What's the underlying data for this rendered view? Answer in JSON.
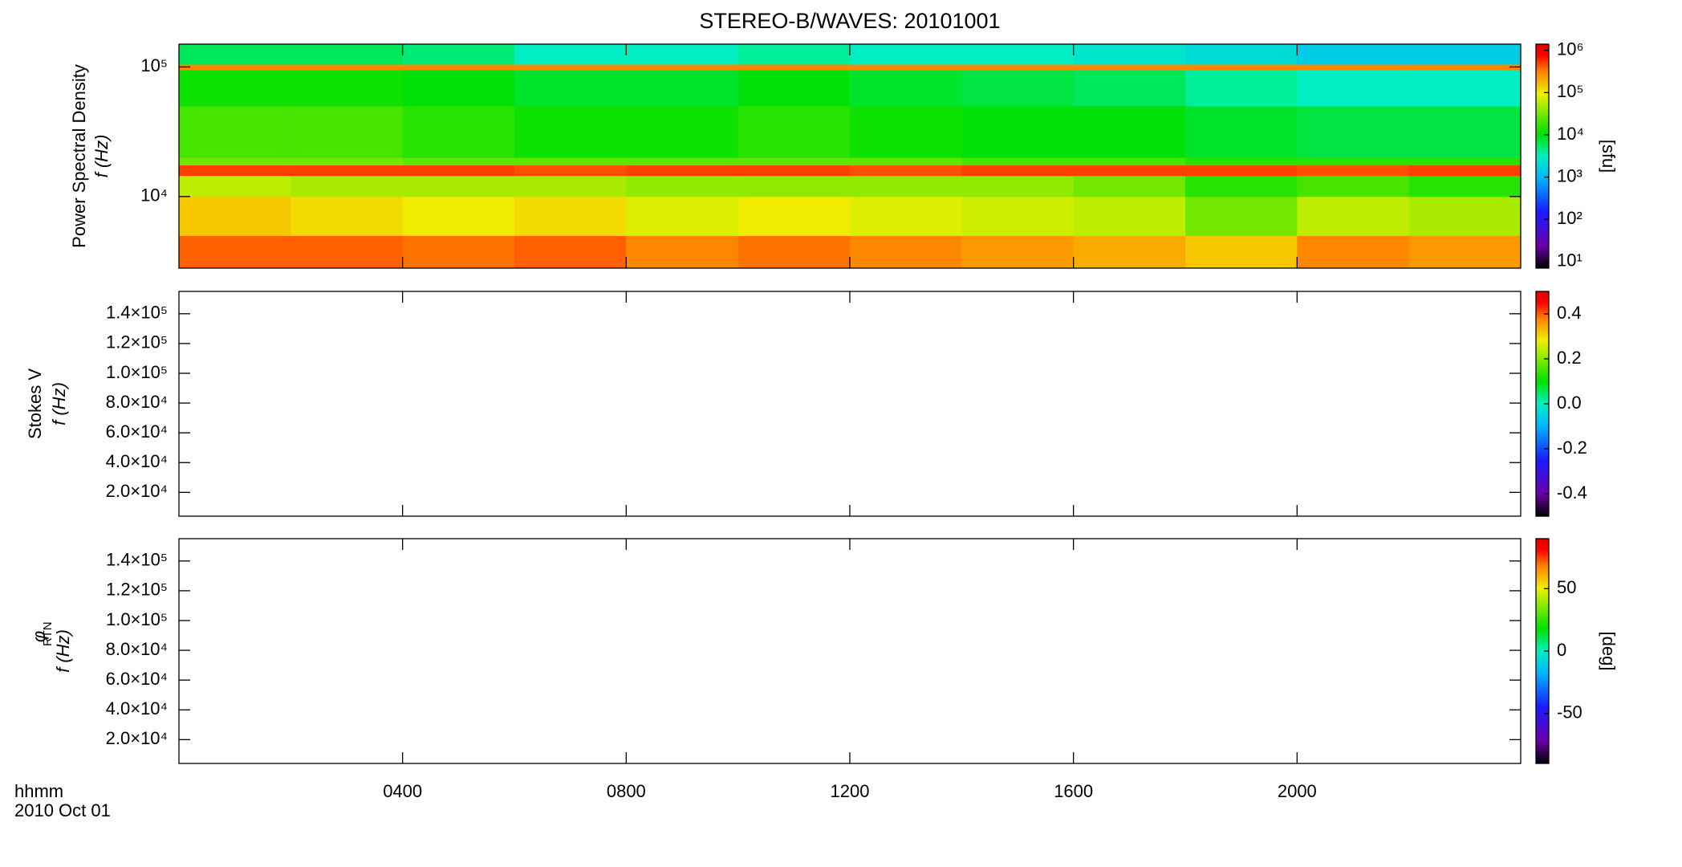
{
  "chart_data": [
    {
      "type": "heatmap",
      "title": "STEREO-B/WAVES: 20101001",
      "ylabel": "Power Spectral Density",
      "ylabel2": "f (Hz)",
      "xlim": [
        0,
        24
      ],
      "xticks": [
        4,
        8,
        12,
        16,
        20
      ],
      "ylog": true,
      "ylim": [
        2800,
        150000
      ],
      "yticks": [
        {
          "value": 10000,
          "label": "10⁴"
        },
        {
          "value": 100000,
          "label": "10⁵"
        }
      ],
      "x_edges": [
        0,
        2,
        4,
        6,
        8,
        10,
        12,
        14,
        16,
        18,
        20,
        22,
        24
      ],
      "y_edges": [
        2800,
        5000,
        10000,
        14500,
        17500,
        20000,
        50000,
        95000,
        105000,
        150000
      ],
      "z": [
        [
          400000,
          400000,
          350000,
          400000,
          300000,
          350000,
          300000,
          250000,
          200000,
          150000,
          300000,
          250000
        ],
        [
          150000,
          120000,
          100000,
          120000,
          80000,
          100000,
          80000,
          70000,
          60000,
          30000,
          60000,
          50000
        ],
        [
          60000,
          50000,
          50000,
          50000,
          40000,
          40000,
          40000,
          40000,
          30000,
          15000,
          20000,
          15000
        ],
        [
          500000,
          500000,
          500000,
          450000,
          500000,
          500000,
          450000,
          500000,
          500000,
          500000,
          450000,
          500000
        ],
        [
          30000,
          30000,
          25000,
          25000,
          25000,
          25000,
          25000,
          20000,
          20000,
          15000,
          15000,
          15000
        ],
        [
          20000,
          20000,
          15000,
          12000,
          12000,
          15000,
          12000,
          10000,
          10000,
          8000,
          7000,
          7000
        ],
        [
          12000,
          12000,
          10000,
          8000,
          8000,
          10000,
          8000,
          7000,
          6000,
          4000,
          3000,
          3000
        ],
        [
          300000,
          300000,
          300000,
          300000,
          300000,
          300000,
          300000,
          300000,
          300000,
          300000,
          300000,
          300000
        ],
        [
          6000,
          6000,
          5000,
          3000,
          3000,
          4000,
          3000,
          3000,
          2500,
          2000,
          1500,
          1500
        ]
      ],
      "colormap": "rainbow",
      "clog": true,
      "clim": [
        7,
        1400000
      ],
      "cticks": [
        {
          "value": 10,
          "label": "10¹"
        },
        {
          "value": 100,
          "label": "10²"
        },
        {
          "value": 1000,
          "label": "10³"
        },
        {
          "value": 10000,
          "label": "10⁴"
        },
        {
          "value": 100000,
          "label": "10⁵"
        },
        {
          "value": 1000000,
          "label": "10⁶"
        }
      ],
      "clabel": "[sfu]"
    },
    {
      "type": "heatmap",
      "ylabel": "Stokes V",
      "ylabel2": "f (Hz)",
      "xlim": [
        0,
        24
      ],
      "xticks": [
        4,
        8,
        12,
        16,
        20
      ],
      "ylim": [
        4000,
        155000
      ],
      "yticks": [
        {
          "value": 20000,
          "label": "2.0×10⁴"
        },
        {
          "value": 40000,
          "label": "4.0×10⁴"
        },
        {
          "value": 60000,
          "label": "6.0×10⁴"
        },
        {
          "value": 80000,
          "label": "8.0×10⁴"
        },
        {
          "value": 100000,
          "label": "1.0×10⁵"
        },
        {
          "value": 120000,
          "label": "1.2×10⁵"
        },
        {
          "value": 140000,
          "label": "1.4×10⁵"
        }
      ],
      "colormap": "rainbow",
      "clim": [
        -0.5,
        0.5
      ],
      "cticks": [
        -0.4,
        -0.2,
        {
          "value": 0,
          "label": "0.0"
        },
        0.2,
        0.4
      ]
    },
    {
      "type": "heatmap",
      "ylabel": "φ",
      "ylabel_sub": "RTN",
      "ylabel2": "f (Hz)",
      "xlim": [
        0,
        24
      ],
      "xticks": [
        {
          "value": 4,
          "label": "0400"
        },
        {
          "value": 8,
          "label": "0800"
        },
        {
          "value": 12,
          "label": "1200"
        },
        {
          "value": 16,
          "label": "1600"
        },
        {
          "value": 20,
          "label": "2000"
        }
      ],
      "xlabel": "hhmm",
      "xlabel2": "2010 Oct 01",
      "ylim": [
        4000,
        155000
      ],
      "yticks": [
        {
          "value": 20000,
          "label": "2.0×10⁴"
        },
        {
          "value": 40000,
          "label": "4.0×10⁴"
        },
        {
          "value": 60000,
          "label": "6.0×10⁴"
        },
        {
          "value": 80000,
          "label": "8.0×10⁴"
        },
        {
          "value": 100000,
          "label": "1.0×10⁵"
        },
        {
          "value": 120000,
          "label": "1.2×10⁵"
        },
        {
          "value": 140000,
          "label": "1.4×10⁵"
        }
      ],
      "colormap": "rainbow",
      "clim": [
        -90,
        90
      ],
      "cticks": [
        -50,
        0,
        50
      ],
      "clabel": "[deg]"
    }
  ]
}
